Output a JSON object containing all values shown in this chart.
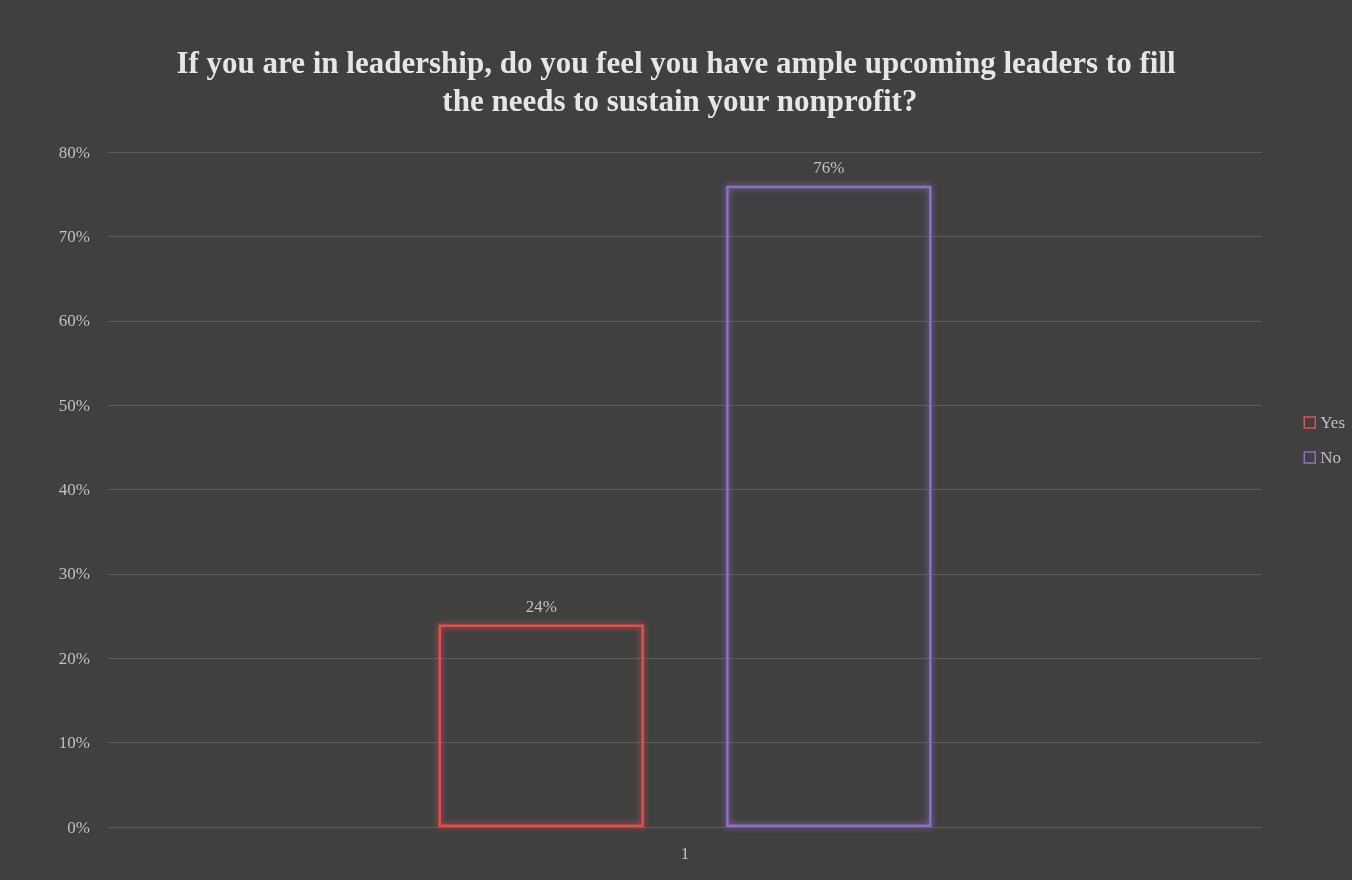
{
  "chart_data": {
    "type": "bar",
    "title": "If you are in leadership, do you feel you have ample upcoming leaders to fill the needs to sustain your nonprofit?",
    "categories": [
      "1"
    ],
    "series": [
      {
        "name": "Yes",
        "color": "#e0504e",
        "values": [
          24
        ],
        "value_labels": [
          "24%"
        ]
      },
      {
        "name": "No",
        "color": "#8c6fc4",
        "values": [
          76
        ],
        "value_labels": [
          "76%"
        ]
      }
    ],
    "ylim": [
      0,
      80
    ],
    "yticks": [
      {
        "value": 0,
        "label": "0%"
      },
      {
        "value": 10,
        "label": "10%"
      },
      {
        "value": 20,
        "label": "20%"
      },
      {
        "value": 30,
        "label": "30%"
      },
      {
        "value": 40,
        "label": "40%"
      },
      {
        "value": 50,
        "label": "50%"
      },
      {
        "value": 60,
        "label": "60%"
      },
      {
        "value": 70,
        "label": "70%"
      },
      {
        "value": 80,
        "label": "80%"
      }
    ],
    "grid": "y",
    "legend": "right"
  }
}
